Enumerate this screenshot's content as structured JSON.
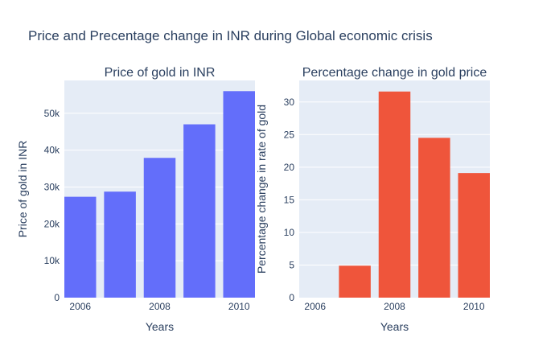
{
  "figure": {
    "title": "Price and Precentage change in INR during Global economic crisis"
  },
  "chart_data": [
    {
      "type": "bar",
      "title": "Price of gold in INR",
      "xlabel": "Years",
      "ylabel": "Price of gold in INR",
      "x": [
        2006,
        2007,
        2008,
        2009,
        2010
      ],
      "values": [
        27350,
        28750,
        37900,
        47000,
        56000
      ],
      "xtick_values": [
        2006,
        2008,
        2010
      ],
      "xtick_labels": [
        "2006",
        "2008",
        "2010"
      ],
      "ytick_values": [
        0,
        10000,
        20000,
        30000,
        40000,
        50000
      ],
      "ytick_labels": [
        "0",
        "10k",
        "20k",
        "30k",
        "40k",
        "50k"
      ],
      "xlim": [
        2005.6,
        2010.4
      ],
      "ylim": [
        0,
        58900
      ],
      "grid": true,
      "color": "#636efa"
    },
    {
      "type": "bar",
      "title": "Percentage change in gold price",
      "xlabel": "Years",
      "ylabel": "Percentage change in rate of gold",
      "x": [
        2006,
        2007,
        2008,
        2009,
        2010
      ],
      "values": [
        0,
        4.9,
        31.6,
        24.5,
        19.1
      ],
      "xtick_values": [
        2006,
        2008,
        2010
      ],
      "xtick_labels": [
        "2006",
        "2008",
        "2010"
      ],
      "ytick_values": [
        0,
        5,
        10,
        15,
        20,
        25,
        30
      ],
      "ytick_labels": [
        "0",
        "5",
        "10",
        "15",
        "20",
        "25",
        "30"
      ],
      "xlim": [
        2005.6,
        2010.4
      ],
      "ylim": [
        0,
        33.3
      ],
      "grid": true,
      "color": "#ef553b"
    }
  ]
}
